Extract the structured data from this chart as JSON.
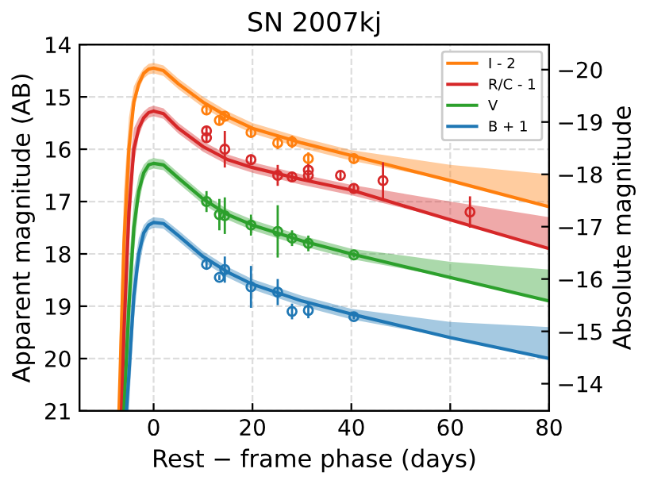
{
  "chart_data": {
    "type": "line",
    "title": "SN 2007kj",
    "xlabel": "Rest − frame phase (days)",
    "ylabel": "Apparent magnitude (AB)",
    "y2label": "Absolute magnitude",
    "xlim": [
      -15,
      80
    ],
    "xticks": [
      0,
      20,
      40,
      60,
      80
    ],
    "ylim": [
      21,
      14
    ],
    "yticks": [
      14,
      15,
      16,
      17,
      18,
      19,
      20,
      21
    ],
    "y2lim": [
      -13.48,
      -20.48
    ],
    "y2ticks": [
      {
        "value": -20,
        "label": "−20"
      },
      {
        "value": -19,
        "label": "−19"
      },
      {
        "value": -18,
        "label": "−18"
      },
      {
        "value": -17,
        "label": "−17"
      },
      {
        "value": -16,
        "label": "−16"
      },
      {
        "value": -15,
        "label": "−15"
      },
      {
        "value": -14,
        "label": "−14"
      }
    ],
    "grid": true,
    "legend": "top right",
    "line_style": "solid",
    "series": [
      {
        "name": "I - 2",
        "color": "#ff7f0e",
        "x": [
          -7,
          -6,
          -5,
          -4,
          -3,
          -2,
          -1,
          0,
          2,
          5,
          10,
          15,
          20,
          30,
          40,
          60,
          80
        ],
        "values": [
          21,
          17.8,
          16.0,
          15.1,
          14.75,
          14.55,
          14.47,
          14.45,
          14.5,
          14.75,
          15.1,
          15.38,
          15.6,
          15.88,
          16.12,
          16.6,
          17.1
        ],
        "lower": [
          20,
          16.8,
          15.4,
          14.8,
          14.6,
          14.45,
          14.37,
          14.35,
          14.4,
          14.65,
          15.0,
          15.28,
          15.5,
          15.78,
          16.02,
          16.3,
          16.48
        ],
        "upper": [
          21,
          18.6,
          16.5,
          15.3,
          14.85,
          14.65,
          14.57,
          14.55,
          14.6,
          14.85,
          15.2,
          15.48,
          15.7,
          15.98,
          16.22,
          16.6,
          17.1
        ]
      },
      {
        "name": "R/C - 1",
        "color": "#d62728",
        "x": [
          -6.5,
          -6,
          -5,
          -4,
          -3,
          -2,
          -1,
          0,
          2,
          5,
          10,
          15,
          20,
          30,
          40,
          60,
          80
        ],
        "values": [
          21,
          19.5,
          17.2,
          16.0,
          15.6,
          15.4,
          15.3,
          15.27,
          15.32,
          15.6,
          15.95,
          16.2,
          16.35,
          16.58,
          16.78,
          17.35,
          17.9
        ],
        "lower": [
          20,
          18.5,
          16.4,
          15.6,
          15.4,
          15.28,
          15.2,
          15.17,
          15.22,
          15.5,
          15.85,
          16.1,
          16.25,
          16.48,
          16.68,
          17.0,
          17.3
        ],
        "upper": [
          21,
          20.3,
          17.9,
          16.3,
          15.75,
          15.5,
          15.4,
          15.37,
          15.42,
          15.7,
          16.05,
          16.3,
          16.45,
          16.68,
          16.88,
          17.35,
          17.9
        ]
      },
      {
        "name": "V",
        "color": "#2ca02c",
        "x": [
          -6,
          -5,
          -4,
          -3,
          -2,
          -1,
          0,
          2,
          5,
          10,
          15,
          20,
          30,
          40,
          60,
          80
        ],
        "values": [
          21,
          19.0,
          17.5,
          16.8,
          16.45,
          16.3,
          16.27,
          16.3,
          16.55,
          16.95,
          17.25,
          17.45,
          17.75,
          18.0,
          18.45,
          18.9
        ],
        "lower": [
          20,
          18.2,
          17.0,
          16.5,
          16.3,
          16.2,
          16.17,
          16.2,
          16.45,
          16.85,
          17.15,
          17.35,
          17.65,
          17.9,
          18.15,
          18.3
        ],
        "upper": [
          21,
          19.7,
          18.0,
          17.05,
          16.6,
          16.4,
          16.37,
          16.4,
          16.65,
          17.05,
          17.35,
          17.55,
          17.85,
          18.1,
          18.45,
          18.9
        ]
      },
      {
        "name": "B + 1",
        "color": "#1f77b4",
        "x": [
          -5.5,
          -5,
          -4,
          -3,
          -2,
          -1,
          0,
          2,
          5,
          10,
          15,
          20,
          30,
          40,
          60,
          80
        ],
        "values": [
          21,
          20.3,
          18.8,
          18.0,
          17.6,
          17.45,
          17.4,
          17.42,
          17.65,
          18.05,
          18.35,
          18.58,
          18.9,
          19.15,
          19.6,
          20.0
        ],
        "lower": [
          20,
          19.5,
          18.3,
          17.7,
          17.45,
          17.35,
          17.3,
          17.32,
          17.55,
          17.95,
          18.25,
          18.48,
          18.8,
          19.05,
          19.3,
          19.4
        ],
        "upper": [
          21,
          21,
          19.3,
          18.3,
          17.8,
          17.55,
          17.5,
          17.52,
          17.75,
          18.15,
          18.45,
          18.68,
          19.0,
          19.25,
          19.6,
          20.0
        ]
      },
      {
        "type": "scatter",
        "marker": "circle",
        "color": "#ff7f0e",
        "x": [
          10.7,
          13.3,
          14.4,
          19.7,
          25.1,
          28,
          31.3,
          40.5
        ],
        "values": [
          15.25,
          15.45,
          15.37,
          15.68,
          15.88,
          15.86,
          16.18,
          16.18
        ],
        "errors": [
          0.1,
          0.1,
          0.1,
          0.1,
          0.12,
          0.12,
          0.12,
          0.1
        ]
      },
      {
        "type": "scatter",
        "marker": "circle",
        "color": "#d62728",
        "x": [
          10.7,
          10.7,
          14.4,
          19.7,
          25.1,
          28,
          31.3,
          31.3,
          37.8,
          40.5,
          46.4,
          64
        ],
        "values": [
          15.65,
          15.78,
          16.0,
          16.2,
          16.5,
          16.53,
          16.4,
          16.5,
          16.5,
          16.75,
          16.6,
          17.2
        ],
        "errors": [
          0.1,
          0.1,
          0.35,
          0.1,
          0.2,
          0.1,
          0.15,
          0.1,
          0.1,
          0.1,
          0.35,
          0.3
        ]
      },
      {
        "type": "scatter",
        "marker": "circle",
        "color": "#2ca02c",
        "x": [
          10.7,
          13.3,
          14.4,
          19.7,
          25.1,
          28,
          31.3,
          40.5
        ],
        "values": [
          17.0,
          17.25,
          17.27,
          17.45,
          17.57,
          17.7,
          17.8,
          18.02
        ],
        "errors": [
          0.2,
          0.3,
          0.35,
          0.2,
          0.5,
          0.15,
          0.15,
          0.05
        ]
      },
      {
        "type": "scatter",
        "marker": "circle",
        "color": "#1f77b4",
        "x": [
          10.7,
          13.3,
          14.4,
          19.7,
          25.1,
          28,
          31.3,
          40.5
        ],
        "values": [
          18.2,
          18.45,
          18.3,
          18.63,
          18.73,
          19.1,
          19.08,
          19.2
        ],
        "errors": [
          0.1,
          0.05,
          0.25,
          0.4,
          0.25,
          0.15,
          0.15,
          0.05
        ]
      }
    ]
  }
}
